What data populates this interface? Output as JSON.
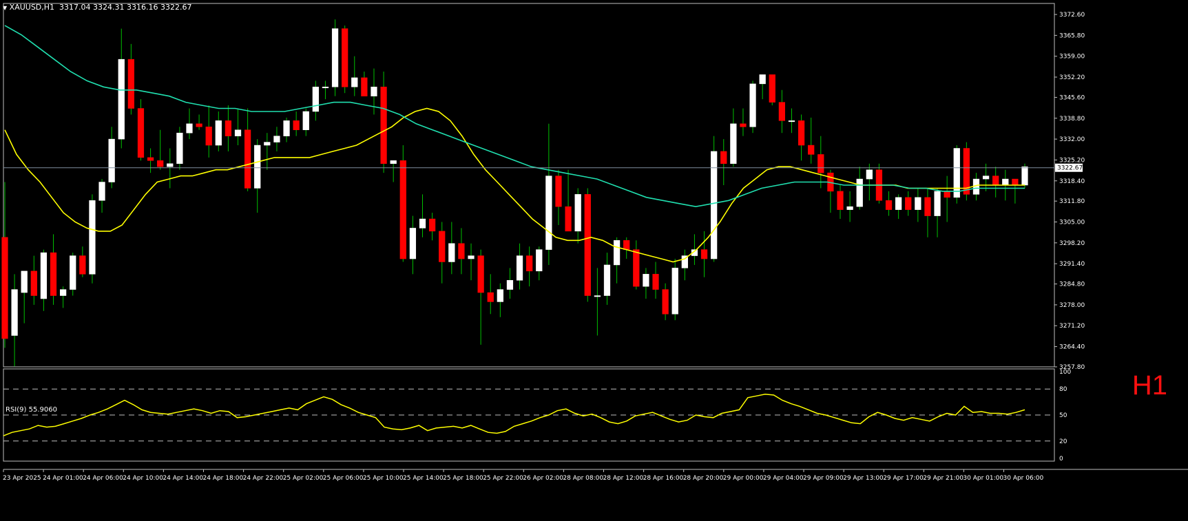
{
  "header": {
    "symbol": "XAUUSD,H1",
    "ohlc": "3317.04 3324.31 3316.16 3322.67"
  },
  "indicator": {
    "label": "RSI(9) 55.9060",
    "levels": [
      80,
      50,
      20
    ],
    "ticks": [
      "100",
      "80",
      "50",
      "20",
      "0"
    ]
  },
  "timeframe_label": "H1",
  "colors": {
    "background": "#000000",
    "bull_candle": "#ffffff",
    "bear_candle": "#ff0000",
    "wick": "#00c000",
    "ma_fast": "#ffff00",
    "ma_slow": "#20e0b0",
    "rsi_line": "#ffff00",
    "grid": "#c0c0c0",
    "axis_text": "#ffffff"
  },
  "chart_data": {
    "type": "candlestick",
    "symbol": "XAUUSD",
    "timeframe": "H1",
    "current_price": 3322.67,
    "ylim": [
      3257.8,
      3376.2
    ],
    "y_ticks": [
      "3372.60",
      "3365.80",
      "3359.00",
      "3352.20",
      "3345.60",
      "3338.80",
      "3332.00",
      "3325.20",
      "3318.40",
      "3311.80",
      "3305.00",
      "3298.20",
      "3291.40",
      "3284.80",
      "3278.00",
      "3271.20",
      "3264.40",
      "3257.80"
    ],
    "x_ticks": [
      "23 Apr 2025",
      "24 Apr 01:00",
      "24 Apr 06:00",
      "24 Apr 10:00",
      "24 Apr 14:00",
      "24 Apr 18:00",
      "24 Apr 22:00",
      "25 Apr 02:00",
      "25 Apr 06:00",
      "25 Apr 10:00",
      "25 Apr 14:00",
      "25 Apr 18:00",
      "25 Apr 22:00",
      "26 Apr 02:00",
      "28 Apr 08:00",
      "28 Apr 12:00",
      "28 Apr 16:00",
      "28 Apr 20:00",
      "29 Apr 00:00",
      "29 Apr 04:00",
      "29 Apr 09:00",
      "29 Apr 13:00",
      "29 Apr 17:00",
      "29 Apr 21:00",
      "30 Apr 01:00",
      "30 Apr 06:00"
    ],
    "candles": [
      [
        3300,
        3318,
        3264,
        3267
      ],
      [
        3268,
        3288,
        3258,
        3283
      ],
      [
        3282,
        3289,
        3272,
        3289
      ],
      [
        3289,
        3294,
        3278,
        3281
      ],
      [
        3280,
        3296,
        3276,
        3295
      ],
      [
        3295,
        3301,
        3278,
        3281
      ],
      [
        3281,
        3284,
        3277,
        3283
      ],
      [
        3283,
        3295,
        3281,
        3294
      ],
      [
        3294,
        3297,
        3287,
        3288
      ],
      [
        3288,
        3314,
        3285,
        3312
      ],
      [
        3312,
        3319,
        3308,
        3318
      ],
      [
        3318,
        3336,
        3316,
        3332
      ],
      [
        3332,
        3368,
        3329,
        3358
      ],
      [
        3358,
        3363,
        3340,
        3342
      ],
      [
        3342,
        3345,
        3325,
        3326
      ],
      [
        3326,
        3329,
        3321,
        3325
      ],
      [
        3325,
        3335,
        3322,
        3323
      ],
      [
        3323,
        3329,
        3316,
        3324
      ],
      [
        3324,
        3336,
        3322,
        3334
      ],
      [
        3334,
        3342,
        3332,
        3337
      ],
      [
        3337,
        3340,
        3335,
        3336
      ],
      [
        3336,
        3343,
        3326,
        3330
      ],
      [
        3330,
        3341,
        3328,
        3338
      ],
      [
        3338,
        3343,
        3328,
        3333
      ],
      [
        3333,
        3342,
        3330,
        3335
      ],
      [
        3335,
        3342,
        3315,
        3316
      ],
      [
        3316,
        3332,
        3308,
        3330
      ],
      [
        3330,
        3334,
        3322,
        3331
      ],
      [
        3331,
        3336,
        3328,
        3333
      ],
      [
        3333,
        3339,
        3331,
        3338
      ],
      [
        3338,
        3341,
        3333,
        3335
      ],
      [
        3335,
        3342,
        3333,
        3341
      ],
      [
        3341,
        3351,
        3338,
        3349
      ],
      [
        3349,
        3351,
        3345,
        3349
      ],
      [
        3349,
        3371,
        3346,
        3368
      ],
      [
        3368,
        3369,
        3347,
        3349
      ],
      [
        3349,
        3359,
        3346,
        3352
      ],
      [
        3352,
        3354,
        3347,
        3346
      ],
      [
        3346,
        3355,
        3340,
        3349
      ],
      [
        3349,
        3354,
        3321,
        3324
      ],
      [
        3324,
        3325,
        3318,
        3325
      ],
      [
        3325,
        3330,
        3292,
        3293
      ],
      [
        3293,
        3307,
        3288,
        3303
      ],
      [
        3303,
        3314,
        3300,
        3306
      ],
      [
        3306,
        3308,
        3299,
        3302
      ],
      [
        3302,
        3305,
        3285,
        3292
      ],
      [
        3292,
        3305,
        3288,
        3298
      ],
      [
        3298,
        3303,
        3288,
        3293
      ],
      [
        3293,
        3298,
        3286,
        3294
      ],
      [
        3294,
        3296,
        3265,
        3282
      ],
      [
        3282,
        3288,
        3275,
        3279
      ],
      [
        3279,
        3285,
        3274,
        3283
      ],
      [
        3283,
        3290,
        3280,
        3286
      ],
      [
        3286,
        3298,
        3283,
        3294
      ],
      [
        3294,
        3297,
        3284,
        3289
      ],
      [
        3289,
        3297,
        3286,
        3296
      ],
      [
        3296,
        3337,
        3291,
        3320
      ],
      [
        3320,
        3322,
        3304,
        3310
      ],
      [
        3310,
        3322,
        3302,
        3302
      ],
      [
        3302,
        3316,
        3298,
        3314
      ],
      [
        3314,
        3316,
        3279,
        3281
      ],
      [
        3281,
        3290,
        3268,
        3281
      ],
      [
        3281,
        3295,
        3278,
        3291
      ],
      [
        3291,
        3300,
        3285,
        3299
      ],
      [
        3299,
        3300,
        3293,
        3296
      ],
      [
        3296,
        3299,
        3283,
        3284
      ],
      [
        3284,
        3290,
        3280,
        3288
      ],
      [
        3288,
        3292,
        3280,
        3283
      ],
      [
        3283,
        3285,
        3273,
        3275
      ],
      [
        3275,
        3293,
        3273,
        3290
      ],
      [
        3290,
        3296,
        3286,
        3294
      ],
      [
        3294,
        3301,
        3291,
        3296
      ],
      [
        3296,
        3302,
        3287,
        3293
      ],
      [
        3293,
        3333,
        3292,
        3328
      ],
      [
        3328,
        3332,
        3317,
        3324
      ],
      [
        3324,
        3342,
        3323,
        3337
      ],
      [
        3337,
        3342,
        3333,
        3336
      ],
      [
        3336,
        3351,
        3334,
        3350
      ],
      [
        3350,
        3353,
        3345,
        3353
      ],
      [
        3353,
        3353,
        3343,
        3344
      ],
      [
        3344,
        3348,
        3334,
        3338
      ],
      [
        3338,
        3342,
        3334,
        3338
      ],
      [
        3338,
        3340,
        3325,
        3330
      ],
      [
        3330,
        3339,
        3324,
        3327
      ],
      [
        3327,
        3333,
        3316,
        3321
      ],
      [
        3321,
        3322,
        3308,
        3315
      ],
      [
        3315,
        3317,
        3306,
        3309
      ],
      [
        3309,
        3315,
        3305,
        3310
      ],
      [
        3310,
        3323,
        3309,
        3319
      ],
      [
        3319,
        3324,
        3312,
        3322
      ],
      [
        3322,
        3324,
        3311,
        3312
      ],
      [
        3312,
        3315,
        3307,
        3309
      ],
      [
        3309,
        3314,
        3306,
        3313
      ],
      [
        3313,
        3315,
        3307,
        3309
      ],
      [
        3309,
        3316,
        3305,
        3313
      ],
      [
        3313,
        3316,
        3300,
        3307
      ],
      [
        3307,
        3316,
        3300,
        3315
      ],
      [
        3315,
        3320,
        3305,
        3313
      ],
      [
        3313,
        3330,
        3311,
        3329
      ],
      [
        3329,
        3331,
        3312,
        3314
      ],
      [
        3314,
        3321,
        3312,
        3319
      ],
      [
        3319,
        3324,
        3315,
        3320
      ],
      [
        3320,
        3323,
        3313,
        3317
      ],
      [
        3317,
        3322,
        3312,
        3319
      ],
      [
        3319,
        3319,
        3311,
        3317
      ],
      [
        3317,
        3324,
        3316,
        3323
      ]
    ],
    "series": [
      {
        "values": [
          3335,
          3327,
          3322,
          3318,
          3313,
          3308,
          3305,
          3303,
          3302,
          3302,
          3304,
          3309,
          3314,
          3318,
          3319,
          3320,
          3320,
          3321,
          3322,
          3322,
          3323,
          3324,
          3325,
          3326,
          3326,
          3326,
          3326,
          3327,
          3328,
          3329,
          3330,
          3332,
          3334,
          3336,
          3339,
          3341,
          3342,
          3341,
          3338,
          3333,
          3327,
          3322,
          3318,
          3314,
          3310,
          3306,
          3303,
          3300,
          3299,
          3299,
          3300,
          3299,
          3297,
          3296,
          3295,
          3294,
          3293,
          3292,
          3293,
          3296,
          3300,
          3305,
          3311,
          3316,
          3319,
          3322,
          3323,
          3323,
          3322,
          3321,
          3320,
          3319,
          3318,
          3317,
          3317,
          3317,
          3317,
          3316,
          3316,
          3316,
          3316,
          3316,
          3316,
          3317,
          3317,
          3317,
          3317,
          3317
        ]
      },
      {
        "values": [
          3369,
          3366,
          3362,
          3358,
          3354,
          3351,
          3349,
          3348,
          3348,
          3347,
          3346,
          3344,
          3343,
          3342,
          3342,
          3341,
          3341,
          3341,
          3342,
          3343,
          3344,
          3344,
          3343,
          3342,
          3340,
          3337,
          3335,
          3333,
          3331,
          3329,
          3327,
          3325,
          3323,
          3322,
          3321,
          3320,
          3319,
          3317,
          3315,
          3313,
          3312,
          3311,
          3310,
          3311,
          3312,
          3314,
          3316,
          3317,
          3318,
          3318,
          3318,
          3317,
          3317,
          3317,
          3317,
          3316,
          3316,
          3315,
          3315,
          3316,
          3316,
          3316,
          3316
        ]
      }
    ],
    "rsi": [
      26,
      30,
      32,
      34,
      38,
      36,
      37,
      40,
      43,
      46,
      50,
      53,
      57,
      62,
      67,
      62,
      56,
      53,
      52,
      51,
      53,
      55,
      57,
      55,
      52,
      55,
      54,
      47,
      48,
      50,
      52,
      54,
      56,
      58,
      56,
      63,
      67,
      71,
      68,
      62,
      58,
      53,
      50,
      47,
      36,
      34,
      33,
      35,
      38,
      32,
      35,
      36,
      37,
      35,
      38,
      34,
      30,
      29,
      31,
      37,
      40,
      43,
      47,
      50,
      55,
      57,
      52,
      49,
      51,
      47,
      42,
      40,
      43,
      49,
      51,
      53,
      49,
      45,
      42,
      44,
      50,
      48,
      47,
      52,
      54,
      56,
      70,
      72,
      74,
      73,
      67,
      63,
      60,
      56,
      52,
      50,
      47,
      44,
      41,
      40,
      48,
      53,
      50,
      46,
      44,
      47,
      45,
      43,
      48,
      52,
      50,
      60,
      53,
      54,
      52,
      52,
      51,
      53,
      56
    ],
    "rsi_period": 9
  }
}
